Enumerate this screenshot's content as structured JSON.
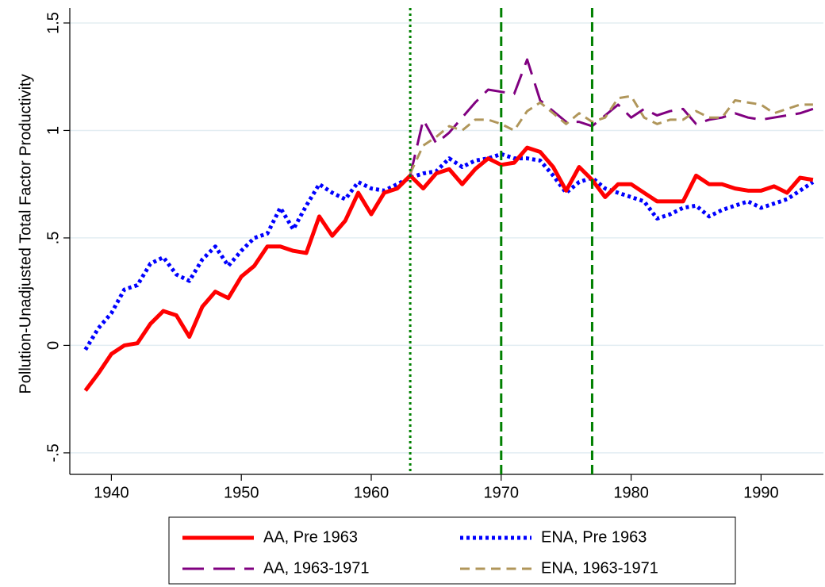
{
  "chart_data": {
    "type": "line",
    "y_axis_label": "Pollution-Unadjusted Total Factor Productivity",
    "x": [
      1938,
      1939,
      1940,
      1941,
      1942,
      1943,
      1944,
      1945,
      1946,
      1947,
      1948,
      1949,
      1950,
      1951,
      1952,
      1953,
      1954,
      1955,
      1956,
      1957,
      1958,
      1959,
      1960,
      1961,
      1962,
      1963,
      1964,
      1965,
      1966,
      1967,
      1968,
      1969,
      1970,
      1971,
      1972,
      1973,
      1974,
      1975,
      1976,
      1977,
      1978,
      1979,
      1980,
      1981,
      1982,
      1983,
      1984,
      1985,
      1986,
      1987,
      1988,
      1989,
      1990,
      1991,
      1992,
      1993,
      1994
    ],
    "series": [
      {
        "name": "AA, Pre 1963",
        "color": "#ff0000",
        "dash": "solid",
        "width": 5,
        "values": [
          -0.21,
          -0.13,
          -0.04,
          0.0,
          0.01,
          0.1,
          0.16,
          0.14,
          0.04,
          0.18,
          0.25,
          0.22,
          0.32,
          0.37,
          0.46,
          0.46,
          0.44,
          0.43,
          0.6,
          0.51,
          0.58,
          0.71,
          0.61,
          0.71,
          0.73,
          0.79,
          0.73,
          0.8,
          0.82,
          0.75,
          0.82,
          0.87,
          0.84,
          0.85,
          0.92,
          0.9,
          0.83,
          0.72,
          0.83,
          0.77,
          0.69,
          0.75,
          0.75,
          0.71,
          0.67,
          0.67,
          0.67,
          0.79,
          0.75,
          0.75,
          0.73,
          0.72,
          0.72,
          0.74,
          0.71,
          0.78,
          0.77
        ]
      },
      {
        "name": "ENA, Pre 1963",
        "color": "#0000ff",
        "dash": "dotted",
        "width": 5,
        "values": [
          -0.02,
          0.08,
          0.15,
          0.26,
          0.28,
          0.38,
          0.41,
          0.33,
          0.3,
          0.4,
          0.46,
          0.37,
          0.44,
          0.5,
          0.52,
          0.64,
          0.54,
          0.65,
          0.75,
          0.71,
          0.68,
          0.76,
          0.73,
          0.72,
          0.75,
          0.78,
          0.8,
          0.81,
          0.87,
          0.83,
          0.86,
          0.87,
          0.89,
          0.87,
          0.87,
          0.86,
          0.79,
          0.71,
          0.76,
          0.78,
          0.73,
          0.71,
          0.69,
          0.67,
          0.59,
          0.61,
          0.64,
          0.65,
          0.6,
          0.63,
          0.65,
          0.67,
          0.64,
          0.66,
          0.68,
          0.72,
          0.76
        ]
      },
      {
        "name": "AA, 1963-1971",
        "color": "#800080",
        "dash": "longdash",
        "width": 3,
        "values": [
          null,
          null,
          null,
          null,
          null,
          null,
          null,
          null,
          null,
          null,
          null,
          null,
          null,
          null,
          null,
          null,
          null,
          null,
          null,
          null,
          null,
          null,
          null,
          null,
          null,
          0.79,
          1.05,
          0.94,
          0.99,
          1.06,
          1.13,
          1.19,
          1.18,
          1.17,
          1.33,
          1.14,
          1.09,
          1.04,
          1.04,
          1.02,
          1.07,
          1.12,
          1.06,
          1.1,
          1.07,
          1.09,
          1.1,
          1.03,
          1.05,
          1.06,
          1.08,
          1.06,
          1.05,
          1.06,
          1.07,
          1.08,
          1.1
        ]
      },
      {
        "name": "ENA, 1963-1971",
        "color": "#b0965a",
        "dash": "dashed",
        "width": 3,
        "values": [
          null,
          null,
          null,
          null,
          null,
          null,
          null,
          null,
          null,
          null,
          null,
          null,
          null,
          null,
          null,
          null,
          null,
          null,
          null,
          null,
          null,
          null,
          null,
          null,
          null,
          0.8,
          0.93,
          0.97,
          1.02,
          1.0,
          1.05,
          1.05,
          1.03,
          1.0,
          1.09,
          1.13,
          1.08,
          1.03,
          1.08,
          1.04,
          1.06,
          1.15,
          1.16,
          1.06,
          1.03,
          1.05,
          1.05,
          1.09,
          1.06,
          1.06,
          1.14,
          1.13,
          1.12,
          1.08,
          1.1,
          1.12,
          1.12
        ]
      }
    ],
    "draw_order": [
      1,
      0,
      2,
      3
    ],
    "vlines": [
      {
        "x": 1963,
        "dash": "dotted"
      },
      {
        "x": 1970,
        "dash": "dashed"
      },
      {
        "x": 1977,
        "dash": "dashed"
      }
    ],
    "vline_color": "#008000",
    "xlim": [
      1936.8,
      1994.8
    ],
    "xticks": [
      1940,
      1950,
      1960,
      1970,
      1980,
      1990
    ],
    "ylim": [
      -0.6,
      1.57
    ],
    "yticks": [
      {
        "value": -0.5,
        "label": "-.5"
      },
      0,
      {
        "value": 0.5,
        "label": ".5"
      },
      1,
      1.5
    ],
    "grid": true,
    "legend_position": "bottom",
    "legend_columns": 2
  }
}
